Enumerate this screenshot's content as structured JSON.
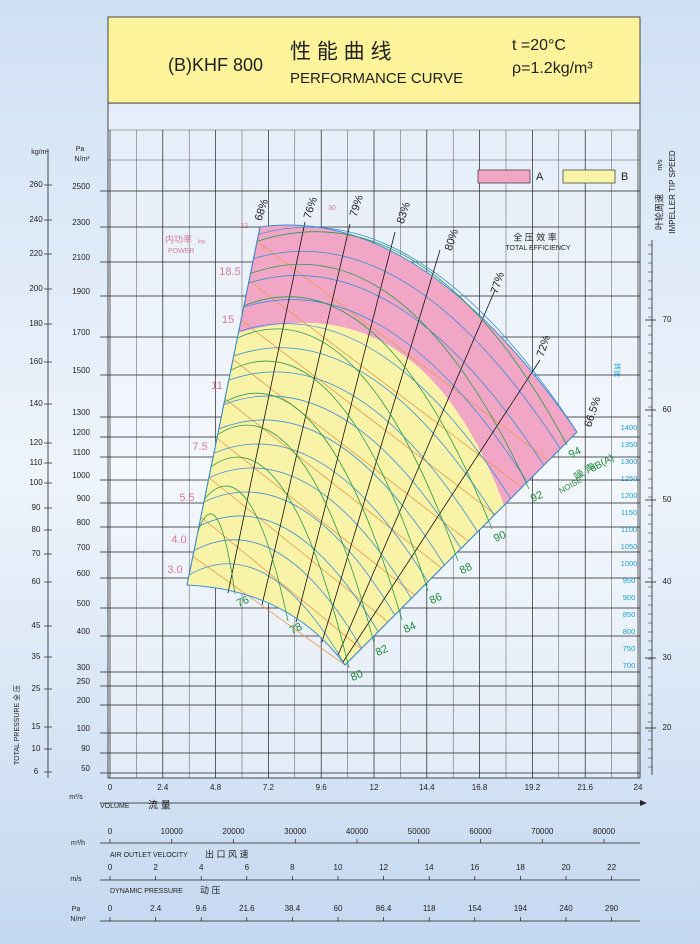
{
  "chart_data": {
    "type": "fan-curve",
    "model": "(B)KHF 800",
    "title_cn": "性 能 曲 线",
    "title_en": "PERFORMANCE CURVE",
    "temperature": "t =20°C",
    "density": "ρ=1.2kg/m³",
    "legend": [
      {
        "name": "A",
        "color": "#f2a6c6"
      },
      {
        "name": "B",
        "color": "#f9f3a8"
      }
    ],
    "xlabel": "VOLUME",
    "xlabel_cn": "流 量",
    "xunit": "m³/s",
    "xlim": [
      0,
      24
    ],
    "xticks": [
      0,
      2.4,
      4.8,
      7.2,
      9.6,
      12,
      14.4,
      16.8,
      19.2,
      21.6,
      24
    ],
    "pressure_label": "TOTAL PRESSURE 全 压",
    "pa_unit": "Pa",
    "pa_unit2": "N/m²",
    "kg_unit": "kg/m²",
    "pa_ticks": [
      2500,
      2300,
      2100,
      1900,
      1700,
      1500,
      1300,
      1200,
      1100,
      1000,
      900,
      800,
      700,
      600,
      500,
      400,
      300,
      250,
      200,
      100,
      90,
      50
    ],
    "kg_ticks": [
      260,
      240,
      220,
      200,
      180,
      160,
      140,
      120,
      110,
      100,
      90,
      80,
      70,
      60,
      45,
      35,
      25,
      15,
      10,
      6
    ],
    "tip_speed_unit": "m/s",
    "tip_speed_cn": "叶轮周速",
    "tip_speed_en": "IMPELLER TIP SPEED",
    "tip_speed_ticks": [
      70,
      60,
      50,
      40,
      30,
      20
    ],
    "rpm_label": "转速",
    "rpm": [
      1400,
      1350,
      1300,
      1250,
      1200,
      1150,
      1100,
      1050,
      1000,
      950,
      900,
      850,
      800,
      750,
      700
    ],
    "efficiency_cn": "全 压 效 率",
    "efficiency_en": "TOTAL EFFICIENCY",
    "efficiency": [
      "68%",
      "76%",
      "79%",
      "83%",
      "80%",
      "77%",
      "72%",
      "66.5%"
    ],
    "power_cn": "内功率",
    "power_unit": "kw",
    "power_en": "POWER",
    "power": [
      "22",
      "30",
      "18.5",
      "15",
      "11",
      "7.5",
      "5.5",
      "4.0",
      "3.0"
    ],
    "noise_cn": "噪 声",
    "noise_unit": "dB(A)",
    "noise_en": "NOISE",
    "noise": [
      76,
      78,
      80,
      82,
      84,
      86,
      88,
      90,
      92,
      94
    ],
    "flow_h_unit": "m³/h",
    "flow_h_ticks": [
      0,
      10000,
      20000,
      30000,
      40000,
      50000,
      60000,
      70000,
      80000
    ],
    "velocity_label": "AIR OUTLET VELOCITY",
    "velocity_cn": "出 口 风 速",
    "velocity_unit": "m/s",
    "velocity_ticks": [
      0,
      2,
      4,
      6,
      8,
      10,
      12,
      14,
      16,
      18,
      20,
      22
    ],
    "dynamic_label": "DYNAMIC PRESSURE",
    "dynamic_cn": "动 压",
    "dynamic_unit": "Pa",
    "dynamic_unit2": "N/m²",
    "dynamic_ticks": [
      0,
      2.4,
      9.6,
      21.6,
      38.4,
      60,
      86.4,
      118,
      154,
      194,
      240,
      290
    ]
  }
}
